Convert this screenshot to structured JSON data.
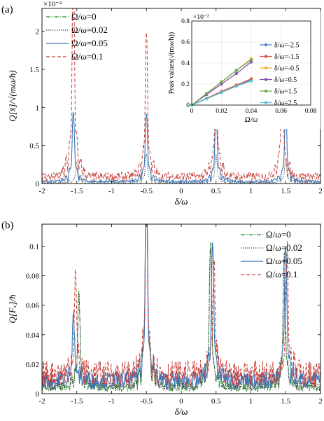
{
  "chart_data": [
    {
      "panel_label": "(a)",
      "type": "line",
      "xlabel": "δ/ω",
      "ylabel": "Q[x̄]/√(mω/ħ)",
      "y_scale_label": "×10⁻²",
      "xlim": [
        -2,
        2
      ],
      "ylim": [
        0,
        2.3
      ],
      "xticks": [
        "-2",
        "-1.5",
        "-1",
        "-0.5",
        "0",
        "0.5",
        "1",
        "1.5",
        "2"
      ],
      "yticks": [
        "0",
        "0.5",
        "1",
        "1.5",
        "2"
      ],
      "legend_position": "upper-left",
      "colors": {
        "series0": "#2a8a2a",
        "series1": "#333333",
        "series2": "#3a78b8",
        "series3": "#c8413c"
      },
      "series": [
        {
          "name": "Ω/ω=0",
          "peaks": [
            [
              -1.5,
              0.0
            ],
            [
              -0.5,
              0.0
            ],
            [
              0.5,
              0.0
            ],
            [
              1.5,
              0.0
            ]
          ],
          "baseline": 0.0
        },
        {
          "name": "Ω/ω=0.02",
          "peaks": [
            [
              -1.5,
              0.22
            ],
            [
              -0.5,
              0.3
            ],
            [
              0.5,
              0.3
            ],
            [
              1.5,
              0.25
            ]
          ],
          "baseline": 0.01
        },
        {
          "name": "Ω/ω=0.05",
          "peaks": [
            [
              -1.55,
              0.73
            ],
            [
              -0.5,
              0.72
            ],
            [
              0.5,
              0.72
            ],
            [
              1.5,
              0.74
            ]
          ],
          "baseline": 0.03
        },
        {
          "name": "Ω/ω=0.1",
          "peaks": [
            [
              -1.55,
              2.3
            ],
            [
              -0.5,
              1.55
            ],
            [
              0.5,
              1.4
            ],
            [
              1.45,
              1.45
            ]
          ],
          "baseline": 0.1
        }
      ],
      "inset": {
        "type": "line",
        "xlabel": "Ω/ω",
        "ylabel": "Peak values(√(mω/ħ))",
        "y_scale_label": "×10⁻²",
        "xlim": [
          0,
          0.08
        ],
        "ylim": [
          0,
          0.8
        ],
        "xticks": [
          "0",
          "0.02",
          "0.04",
          "0.06",
          "0.08"
        ],
        "yticks": [
          "0",
          "0.2",
          "0.4",
          "0.6",
          "0.8"
        ],
        "x": [
          0,
          0.01,
          0.02,
          0.03,
          0.04
        ],
        "series": [
          {
            "name": "δ/ω=-2.5",
            "color": "#4f7fc4",
            "values": [
              0.0,
              0.06,
              0.12,
              0.18,
              0.24
            ]
          },
          {
            "name": "δ/ω=-1.5",
            "color": "#d9553e",
            "values": [
              0.0,
              0.065,
              0.13,
              0.19,
              0.25
            ]
          },
          {
            "name": "δ/ω=-0.5",
            "color": "#e8b23a",
            "values": [
              0.0,
              0.11,
              0.22,
              0.33,
              0.44
            ]
          },
          {
            "name": "δ/ω=0.5",
            "color": "#8a4fb0",
            "values": [
              0.0,
              0.1,
              0.2,
              0.3,
              0.41
            ]
          },
          {
            "name": "δ/ω=1.5",
            "color": "#6aa84f",
            "values": [
              0.0,
              0.11,
              0.22,
              0.33,
              0.43
            ]
          },
          {
            "name": "δ/ω=2.5",
            "color": "#5bc0d8",
            "values": [
              0.0,
              0.06,
              0.12,
              0.18,
              0.23
            ]
          }
        ]
      }
    },
    {
      "panel_label": "(b)",
      "type": "line",
      "xlabel": "δ/ω",
      "ylabel": "Q[Fₓ]/ħ",
      "xlim": [
        -2,
        2
      ],
      "ylim": [
        0,
        0.115
      ],
      "xticks": [
        "-2",
        "-1.5",
        "-1",
        "-0.5",
        "0",
        "0.5",
        "1",
        "1.5",
        "2"
      ],
      "yticks": [
        "0",
        "0.02",
        "0.04",
        "0.06",
        "0.08",
        "0.1"
      ],
      "legend_position": "upper-right",
      "series": [
        {
          "name": "Ω/ω=0",
          "peaks": [
            [
              -1.47,
              0.052
            ],
            [
              -0.5,
              0.115
            ],
            [
              0.42,
              0.078
            ],
            [
              1.48,
              0.074
            ]
          ],
          "baseline": 0.005
        },
        {
          "name": "Ω/ω=0.02",
          "peaks": [
            [
              -1.47,
              0.05
            ],
            [
              -0.5,
              0.113
            ],
            [
              0.42,
              0.077
            ],
            [
              1.48,
              0.073
            ]
          ],
          "baseline": 0.006
        },
        {
          "name": "Ω/ω=0.05",
          "peaks": [
            [
              -1.55,
              0.037
            ],
            [
              -0.5,
              0.115
            ],
            [
              0.45,
              0.075
            ],
            [
              1.5,
              0.076
            ]
          ],
          "baseline": 0.01
        },
        {
          "name": "Ω/ω=0.1",
          "peaks": [
            [
              -1.52,
              0.055
            ],
            [
              -0.5,
              0.105
            ],
            [
              0.47,
              0.06
            ],
            [
              1.52,
              0.068
            ]
          ],
          "baseline": 0.015
        }
      ]
    }
  ]
}
